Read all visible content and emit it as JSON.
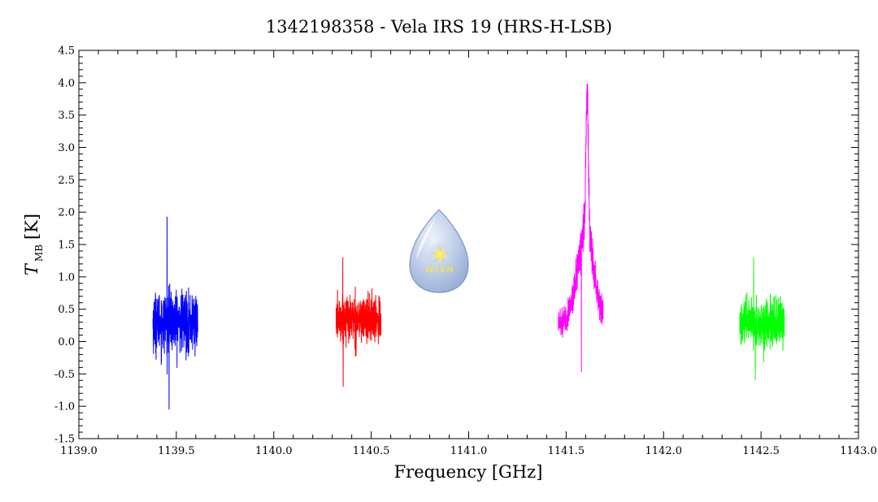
{
  "chart_data": {
    "type": "line",
    "title": "1342198358 - Vela IRS 19 (HRS-H-LSB)",
    "xlabel": "Frequency [GHz]",
    "ylabel_main": "T",
    "ylabel_sub": "MB",
    "ylabel_unit": "[K]",
    "xlim": [
      1139.0,
      1143.0
    ],
    "ylim": [
      -1.5,
      4.5
    ],
    "x_ticks": [
      1139.0,
      1139.5,
      1140.0,
      1140.5,
      1141.0,
      1141.5,
      1142.0,
      1142.5,
      1143.0
    ],
    "x_tick_labels": [
      "1139.0",
      "1139.5",
      "1140.0",
      "1140.5",
      "1141.0",
      "1141.5",
      "1142.0",
      "1142.5",
      "1143.0"
    ],
    "y_ticks": [
      -1.5,
      -1.0,
      -0.5,
      0.0,
      0.5,
      1.0,
      1.5,
      2.0,
      2.5,
      3.0,
      3.5,
      4.0,
      4.5
    ],
    "y_tick_labels": [
      "-1.5",
      "-1.0",
      "-0.5",
      "0.0",
      "0.5",
      "1.0",
      "1.5",
      "2.0",
      "2.5",
      "3.0",
      "3.5",
      "4.0",
      "4.5"
    ],
    "grid": false,
    "logo_text": "WISH",
    "series": [
      {
        "color": "#0000ff",
        "x_range": [
          1139.38,
          1139.61
        ],
        "baseline": 0.3,
        "noise_amplitude": 0.55,
        "max": 1.93,
        "min": -1.05,
        "peak_center": null,
        "peak_height": 0,
        "peak_width": 0
      },
      {
        "color": "#ff0000",
        "x_range": [
          1140.32,
          1140.55
        ],
        "baseline": 0.35,
        "noise_amplitude": 0.42,
        "max": 1.3,
        "min": -0.7,
        "peak_center": null,
        "peak_height": 0,
        "peak_width": 0
      },
      {
        "color": "#ff00ff",
        "x_range": [
          1141.46,
          1141.69
        ],
        "baseline": 0.3,
        "noise_amplitude": 0.28,
        "max": 3.98,
        "min": -0.47,
        "peak_center": 1141.6,
        "peak_height": 1.45,
        "peak_width": 0.04,
        "spike_center": 1141.608,
        "spike_height": 2.1,
        "spike_width": 0.006
      },
      {
        "color": "#00ff00",
        "x_range": [
          1142.39,
          1142.62
        ],
        "baseline": 0.27,
        "noise_amplitude": 0.42,
        "max": 1.3,
        "min": -0.6,
        "peak_center": null,
        "peak_height": 0,
        "peak_width": 0
      }
    ]
  }
}
